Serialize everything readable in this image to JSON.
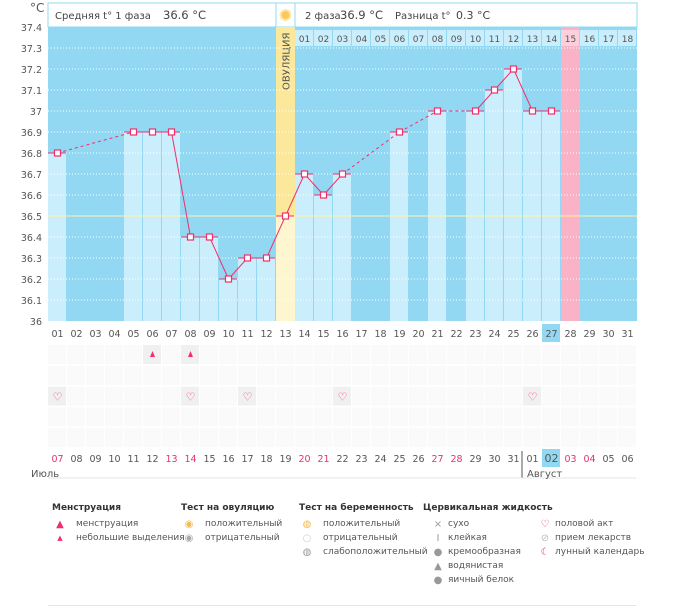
{
  "header": {
    "unit": "°C",
    "phase1_label": "Средняя t° 1 фаза",
    "phase1_value": "36.6 °C",
    "phase2_label": "2 фаза",
    "phase2_value": "36.9 °C",
    "diff_label": "Разница t°",
    "diff_value": "0.3 °C",
    "ovulation_label": "ОВУЛЯЦИЯ"
  },
  "chart_data": {
    "type": "line",
    "ylim": [
      36,
      37.4
    ],
    "yticks": [
      "36",
      "36.1",
      "36.2",
      "36.3",
      "36.4",
      "36.5",
      "36.6",
      "36.7",
      "36.8",
      "36.9",
      "37",
      "37.1",
      "37.2",
      "37.3",
      "37.4"
    ],
    "cycle_days": [
      "01",
      "02",
      "03",
      "04",
      "05",
      "06",
      "07",
      "08",
      "09",
      "10",
      "11",
      "12",
      "13",
      "14",
      "15",
      "16",
      "17",
      "18",
      "19",
      "20",
      "21",
      "22",
      "23",
      "24",
      "25",
      "26",
      "27",
      "28",
      "29",
      "30",
      "31"
    ],
    "temperatures": [
      36.8,
      null,
      null,
      null,
      36.9,
      36.9,
      36.9,
      36.4,
      36.4,
      36.2,
      36.3,
      36.3,
      36.5,
      36.7,
      36.6,
      36.7,
      null,
      null,
      36.9,
      null,
      37.0,
      null,
      37.0,
      37.1,
      37.2,
      37.0,
      37.0,
      null,
      null,
      null,
      null
    ],
    "coverline": 36.5,
    "ovulation_day": 13,
    "expected_period_day": 28,
    "current_day": 27,
    "phase2_days": [
      "01",
      "02",
      "03",
      "04",
      "05",
      "06",
      "07",
      "08",
      "09",
      "10",
      "11",
      "12",
      "13",
      "14",
      "15",
      "16",
      "17",
      "18"
    ]
  },
  "calendar": {
    "dates": [
      "07",
      "08",
      "09",
      "10",
      "11",
      "12",
      "13",
      "14",
      "15",
      "16",
      "17",
      "18",
      "19",
      "20",
      "21",
      "22",
      "23",
      "24",
      "25",
      "26",
      "27",
      "28",
      "29",
      "30",
      "31",
      "01",
      "02",
      "03",
      "04",
      "05",
      "06"
    ],
    "weekend_indices": [
      0,
      6,
      7,
      13,
      14,
      20,
      21,
      27,
      28
    ],
    "today_index": 26,
    "months": [
      "Июль",
      "Август"
    ],
    "spotting_days": [
      6,
      8
    ],
    "intercourse_days": [
      1,
      8,
      11,
      16,
      26
    ]
  },
  "colors": {
    "bg": "#93d8f3",
    "bar": "#cbeefc",
    "line": "#f0306a",
    "ovulation": "#fbe89a",
    "period": "#f9b2c6",
    "weekend": "#e8336a"
  },
  "legend": {
    "menstruation": {
      "title": "Менструация",
      "items": [
        "менструация",
        "небольшие выделения"
      ]
    },
    "ovulation_test": {
      "title": "Тест на овуляцию",
      "items": [
        "положительный",
        "отрицательный"
      ]
    },
    "pregnancy_test": {
      "title": "Тест на беременность",
      "items": [
        "положительный",
        "отрицательный",
        "слабоположительный"
      ]
    },
    "cervical": {
      "title": "Цервикальная жидкость",
      "items": [
        "сухо",
        "клейкая",
        "кремообразная",
        "водянистая",
        "яичный белок"
      ]
    },
    "other": {
      "items": [
        "половой акт",
        "прием лекарств",
        "лунный календарь"
      ]
    }
  }
}
